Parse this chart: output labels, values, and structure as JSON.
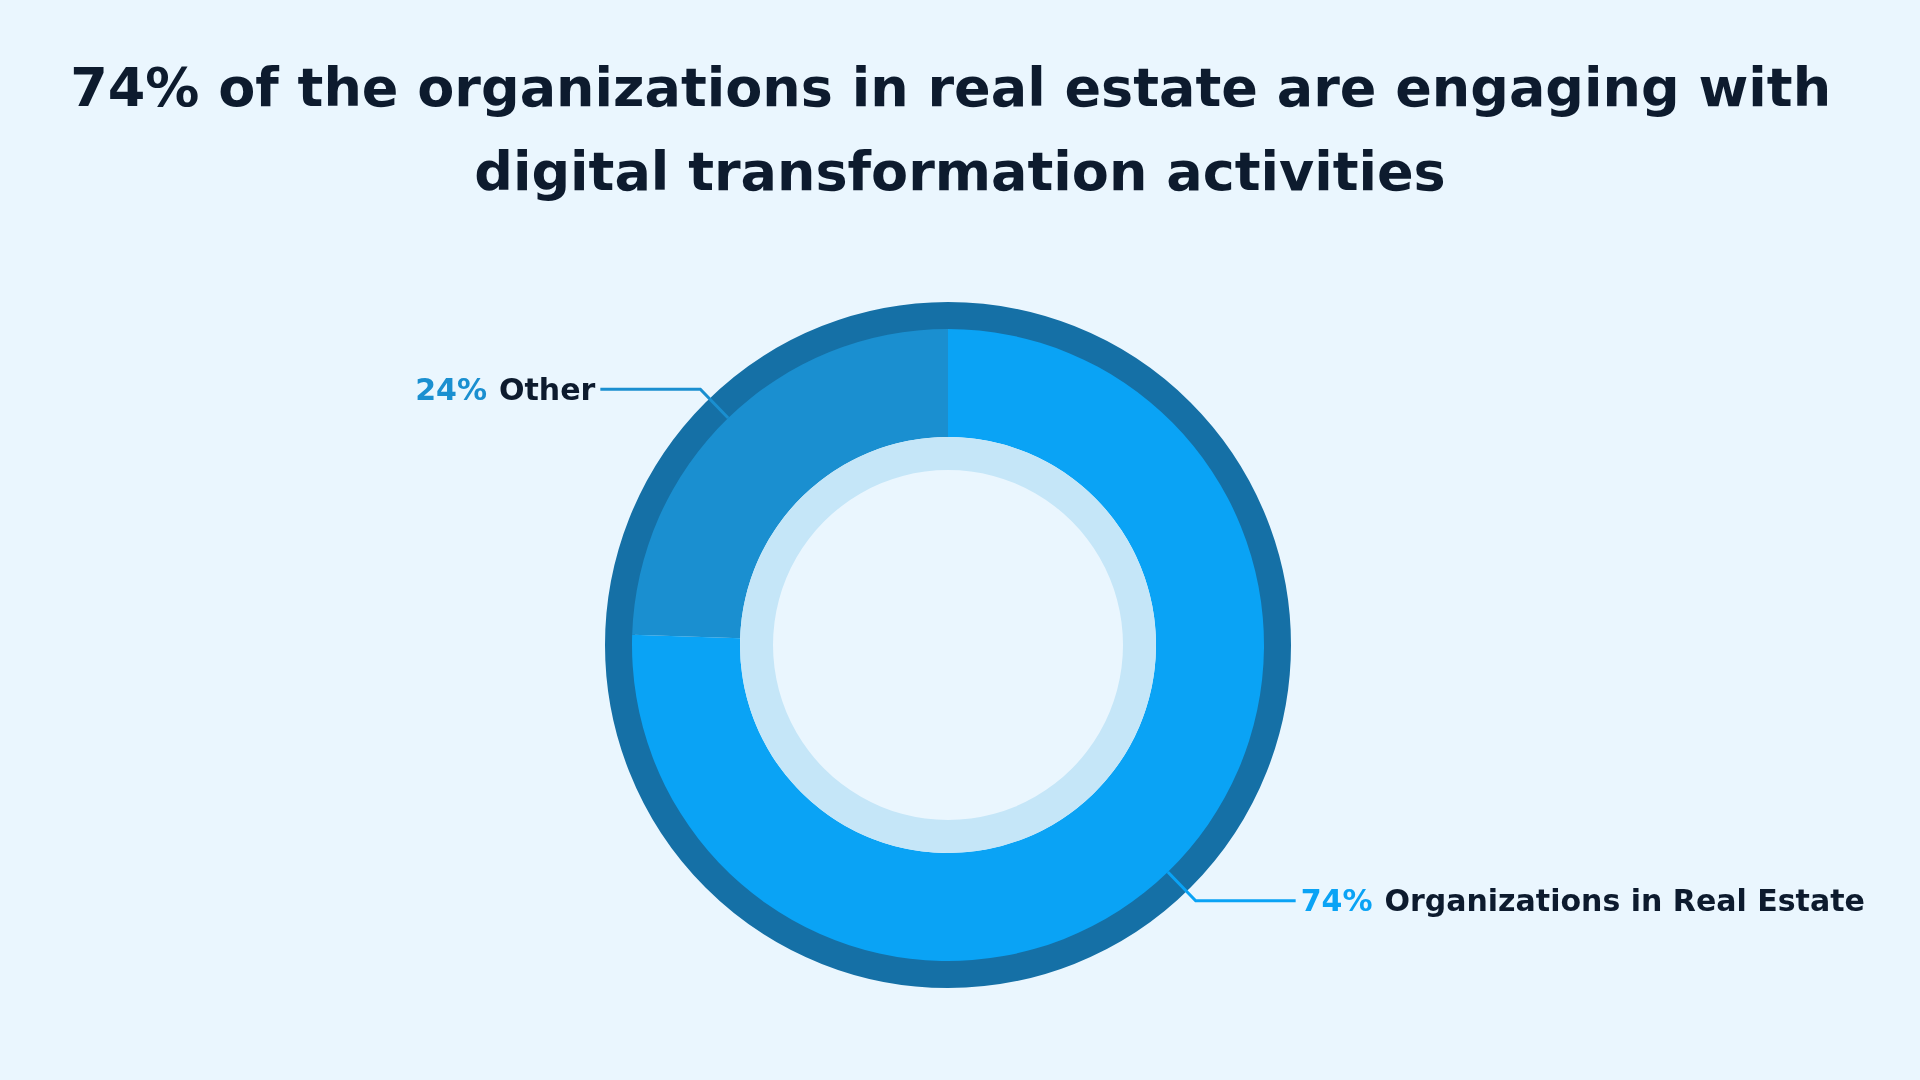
{
  "chart_data": {
    "type": "donut",
    "title": "74% of the organizations in real estate are engaging with digital transformation activities",
    "categories": [
      "Organizations in Real Estate",
      "Other"
    ],
    "values": [
      74,
      24
    ],
    "colors": [
      "#0aa3f5",
      "#1a8fd0"
    ],
    "value_labels": [
      "74%",
      "24%"
    ]
  }
}
